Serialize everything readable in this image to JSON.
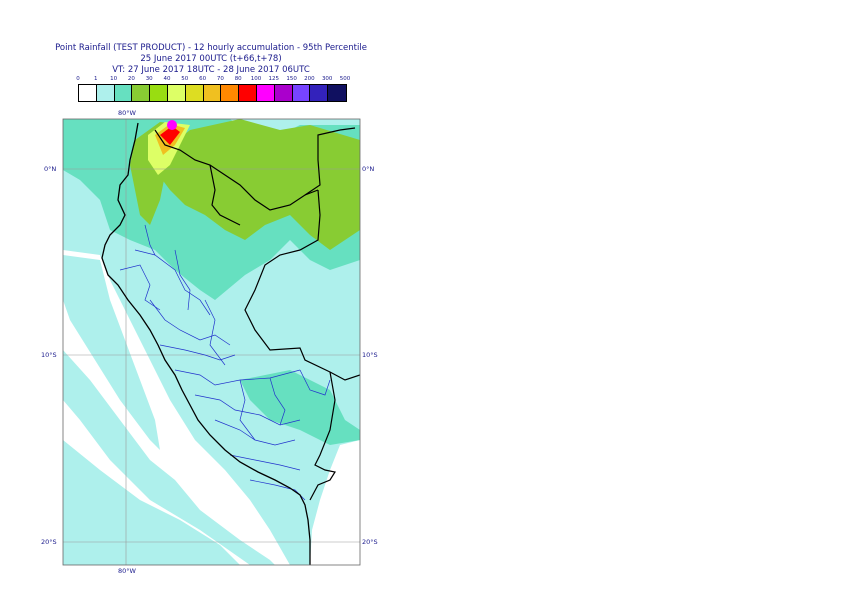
{
  "title": {
    "line1": "Point Rainfall (TEST PRODUCT) - 12 hourly accumulation - 95th Percentile",
    "line2": "25 June 2017 00UTC (t+66,t+78)",
    "line3": "VT: 27 June 2017 18UTC - 28 June 2017 06UTC"
  },
  "legend": {
    "labels": [
      "0",
      "1",
      "10",
      "20",
      "30",
      "40",
      "50",
      "60",
      "70",
      "80",
      "100",
      "125",
      "150",
      "200",
      "300",
      "500"
    ],
    "colors": [
      "#ffffff",
      "#aef0ec",
      "#66e0c0",
      "#88cc33",
      "#99dd11",
      "#ddff66",
      "#dddd22",
      "#f0c020",
      "#ff8800",
      "#ff0000",
      "#ff00ff",
      "#aa00cc",
      "#7744ff",
      "#3322bb",
      "#101060"
    ]
  },
  "axes": {
    "top_lon": "80°W",
    "bottom_lon": "80°W",
    "lat_labels": [
      "0°N",
      "10°S",
      "20°S"
    ]
  },
  "colors": {
    "land_light": "#aef0ec",
    "land_mid": "#66e0c0",
    "green": "#88cc33",
    "border": "#000000",
    "regions": "#2233cc",
    "grid": "#999999"
  }
}
